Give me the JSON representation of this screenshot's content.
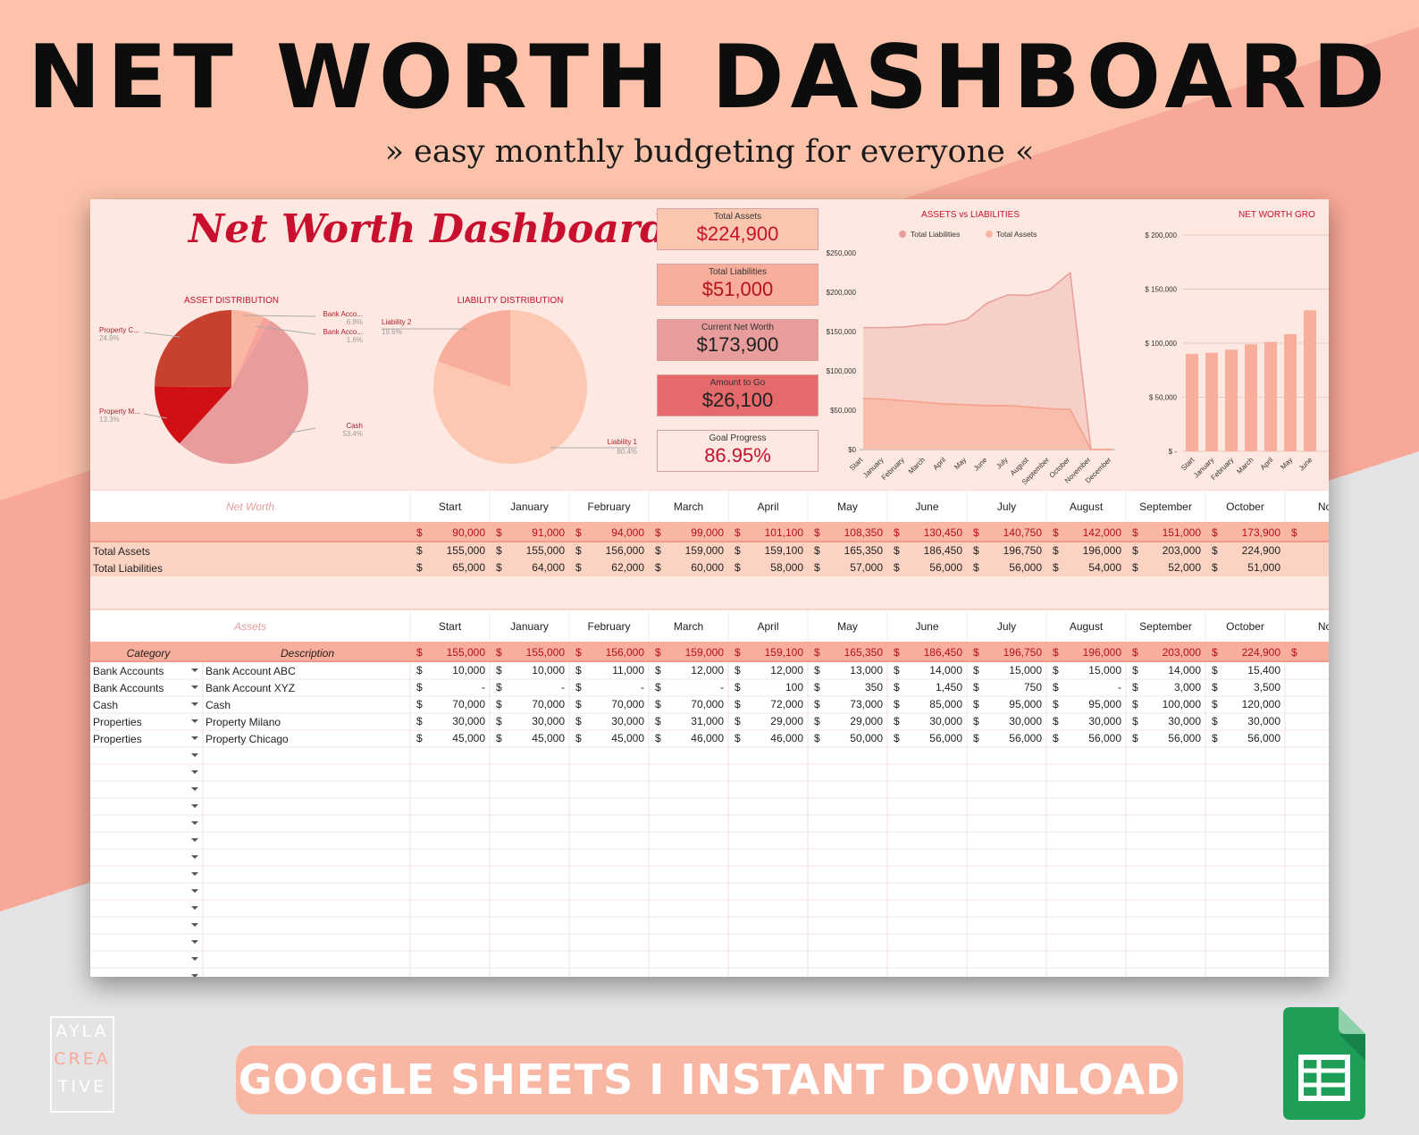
{
  "banner": {
    "title": "NET WORTH DASHBOARD",
    "subtitle": "» easy monthly budgeting for everyone «",
    "footer": "GOOGLE SHEETS  I  INSTANT DOWNLOAD",
    "logo_lines": [
      "AYLA",
      "CREA",
      "TIVE"
    ]
  },
  "colors": {
    "peach": "#f9b7a3",
    "light_peach": "#fde9e2",
    "red": "#c8102e",
    "dark_red": "#c8102e",
    "green": "#1e9e56"
  },
  "dashboard": {
    "title": "Net Worth Dashboard",
    "kpis": [
      {
        "label": "Total Assets",
        "value": "$224,900",
        "bg": "#fbc6ae",
        "fg": "#c8102e"
      },
      {
        "label": "Total Liabilities",
        "value": "$51,000",
        "bg": "#f9ad9b",
        "fg": "#b5121b"
      },
      {
        "label": "Current Net Worth",
        "value": "$173,900",
        "bg": "#e89c9c",
        "fg": "#222222"
      },
      {
        "label": "Amount to Go",
        "value": "$26,100",
        "bg": "#e46a6c",
        "fg": "#222222"
      },
      {
        "label": "Goal Progress",
        "value": "86.95%",
        "bg": "#fde9e2",
        "fg": "#c8102e"
      }
    ]
  },
  "chart_data": [
    {
      "type": "pie",
      "title": "ASSET DISTRIBUTION",
      "slices": [
        {
          "label": "Bank Acco...",
          "percent": 6.8,
          "color": "#f9b7a3"
        },
        {
          "label": "Bank Acco...",
          "percent": 1.6,
          "color": "#f7a39a"
        },
        {
          "label": "Cash",
          "percent": 53.4,
          "color": "#e89c9c"
        },
        {
          "label": "Property M...",
          "percent": 13.3,
          "color": "#d01015"
        },
        {
          "label": "Property C...",
          "percent": 24.9,
          "color": "#c8402e"
        }
      ],
      "percent_labels": [
        "6.8%",
        "1.6%",
        "53.4%",
        "13.3%",
        "24.9%"
      ]
    },
    {
      "type": "pie",
      "title": "LIABILITY DISTRIBUTION",
      "slices": [
        {
          "label": "Liability 1",
          "percent": 80.4,
          "color": "#fcc8b2"
        },
        {
          "label": "Liability 2",
          "percent": 19.6,
          "color": "#f9ad9b"
        }
      ],
      "percent_labels": [
        "80.4%",
        "19.6%"
      ]
    },
    {
      "type": "area",
      "title": "ASSETS vs LIABILITIES",
      "legend": [
        "Total Liabilities",
        "Total Assets"
      ],
      "legend_colors": [
        "#e89c9c",
        "#f9b7a3"
      ],
      "categories": [
        "Start",
        "January",
        "February",
        "March",
        "April",
        "May",
        "June",
        "July",
        "August",
        "September",
        "October",
        "November",
        "December"
      ],
      "series": [
        {
          "name": "Total Assets",
          "values": [
            155000,
            155000,
            156000,
            159000,
            159100,
            165350,
            186450,
            196750,
            196000,
            203000,
            224900,
            0,
            0
          ]
        },
        {
          "name": "Total Liabilities",
          "values": [
            65000,
            64000,
            62000,
            60000,
            58000,
            57000,
            56000,
            56000,
            54000,
            52000,
            51000,
            0,
            0
          ]
        }
      ],
      "ylim": [
        0,
        250000
      ],
      "yticks": [
        "$0",
        "$50,000",
        "$100,000",
        "$150,000",
        "$200,000",
        "$250,000"
      ]
    },
    {
      "type": "bar",
      "title": "NET WORTH GRO",
      "categories": [
        "Start",
        "January",
        "February",
        "March",
        "April",
        "May",
        "June"
      ],
      "values": [
        90000,
        91000,
        94000,
        99000,
        101100,
        108350,
        130450
      ],
      "ylim": [
        0,
        200000
      ],
      "yticks": [
        "$ -",
        "$ 50,000",
        "$ 100,000",
        "$ 150,000",
        "$ 200,000"
      ]
    }
  ],
  "networth": {
    "title": "Net Worth",
    "months": [
      "Start",
      "January",
      "February",
      "March",
      "April",
      "May",
      "June",
      "July",
      "August",
      "September",
      "October",
      "No"
    ],
    "total_row": [
      "90,000",
      "91,000",
      "94,000",
      "99,000",
      "101,100",
      "108,350",
      "130,450",
      "140,750",
      "142,000",
      "151,000",
      "173,900",
      ""
    ],
    "rows": [
      {
        "label": "Total Assets",
        "values": [
          "155,000",
          "155,000",
          "156,000",
          "159,000",
          "159,100",
          "165,350",
          "186,450",
          "196,750",
          "196,000",
          "203,000",
          "224,900"
        ]
      },
      {
        "label": "Total Liabilities",
        "values": [
          "65,000",
          "64,000",
          "62,000",
          "60,000",
          "58,000",
          "57,000",
          "56,000",
          "56,000",
          "54,000",
          "52,000",
          "51,000"
        ]
      }
    ]
  },
  "assets": {
    "title": "Assets",
    "category_header": "Category",
    "description_header": "Description",
    "total_row": [
      "155,000",
      "155,000",
      "156,000",
      "159,000",
      "159,100",
      "165,350",
      "186,450",
      "196,750",
      "196,000",
      "203,000",
      "224,900",
      ""
    ],
    "rows": [
      {
        "category": "Bank Accounts",
        "description": "Bank Account ABC",
        "values": [
          "10,000",
          "10,000",
          "11,000",
          "12,000",
          "12,000",
          "13,000",
          "14,000",
          "15,000",
          "15,000",
          "14,000",
          "15,400"
        ]
      },
      {
        "category": "Bank Accounts",
        "description": "Bank Account XYZ",
        "values": [
          "-",
          "-",
          "-",
          "-",
          "100",
          "350",
          "1,450",
          "750",
          "-",
          "3,000",
          "3,500"
        ]
      },
      {
        "category": "Cash",
        "description": "Cash",
        "values": [
          "70,000",
          "70,000",
          "70,000",
          "70,000",
          "72,000",
          "73,000",
          "85,000",
          "95,000",
          "95,000",
          "100,000",
          "120,000"
        ]
      },
      {
        "category": "Properties",
        "description": "Property Milano",
        "values": [
          "30,000",
          "30,000",
          "30,000",
          "31,000",
          "29,000",
          "29,000",
          "30,000",
          "30,000",
          "30,000",
          "30,000",
          "30,000"
        ]
      },
      {
        "category": "Properties",
        "description": "Property Chicago",
        "values": [
          "45,000",
          "45,000",
          "45,000",
          "46,000",
          "46,000",
          "50,000",
          "56,000",
          "56,000",
          "56,000",
          "56,000",
          "56,000"
        ]
      }
    ],
    "currency_symbol": "$",
    "dropdown_icon": "triangle-down-icon"
  }
}
